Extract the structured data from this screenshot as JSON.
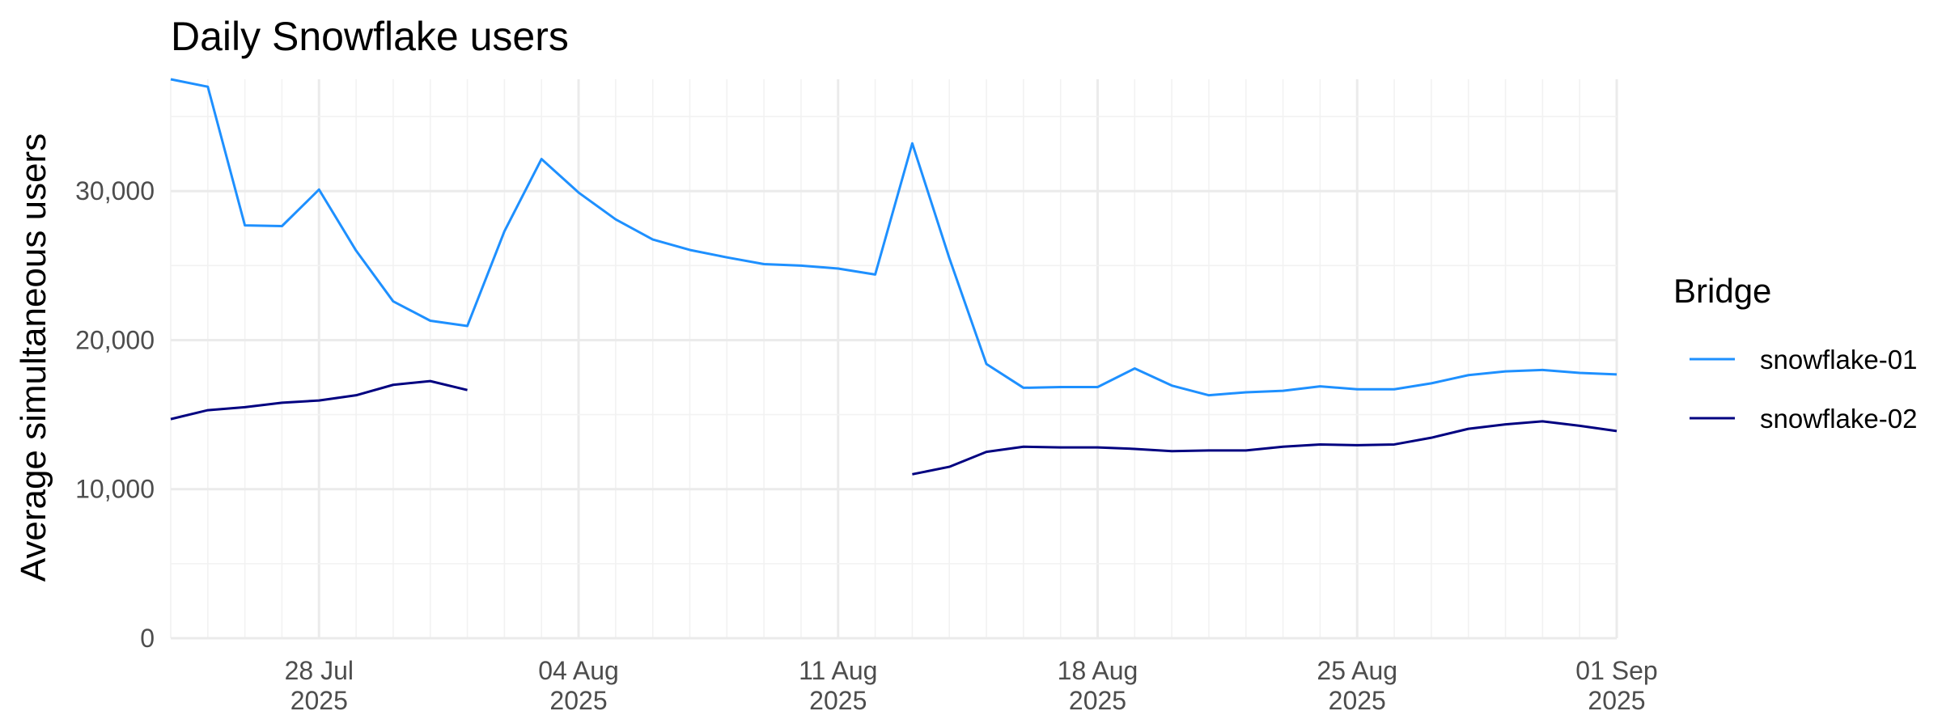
{
  "chart_data": {
    "type": "line",
    "title": "Daily Snowflake users",
    "xlabel": "",
    "ylabel": "Average simultaneous users",
    "xlim": [
      "2025-07-24",
      "2025-09-01"
    ],
    "ylim": [
      0,
      37500
    ],
    "y_ticks": [
      {
        "value": 0,
        "label": "0"
      },
      {
        "value": 10000,
        "label": "10,000"
      },
      {
        "value": 20000,
        "label": "20,000"
      },
      {
        "value": 30000,
        "label": "30,000"
      }
    ],
    "x_ticks": [
      {
        "date": "2025-07-28",
        "line1": "28 Jul",
        "line2": "2025"
      },
      {
        "date": "2025-08-04",
        "line1": "04 Aug",
        "line2": "2025"
      },
      {
        "date": "2025-08-11",
        "line1": "11 Aug",
        "line2": "2025"
      },
      {
        "date": "2025-08-18",
        "line1": "18 Aug",
        "line2": "2025"
      },
      {
        "date": "2025-08-25",
        "line1": "25 Aug",
        "line2": "2025"
      },
      {
        "date": "2025-09-01",
        "line1": "01 Sep",
        "line2": "2025"
      }
    ],
    "grid": true,
    "legend": {
      "title": "Bridge",
      "position": "right"
    },
    "series": [
      {
        "name": "snowflake-01",
        "color": "#1e90ff",
        "points": [
          {
            "x": "2025-07-24",
            "y": 37500
          },
          {
            "x": "2025-07-25",
            "y": 37000
          },
          {
            "x": "2025-07-26",
            "y": 27700
          },
          {
            "x": "2025-07-27",
            "y": 27650
          },
          {
            "x": "2025-07-28",
            "y": 30100
          },
          {
            "x": "2025-07-29",
            "y": 26000
          },
          {
            "x": "2025-07-30",
            "y": 22600
          },
          {
            "x": "2025-07-31",
            "y": 21300
          },
          {
            "x": "2025-08-01",
            "y": 20950
          },
          {
            "x": "2025-08-02",
            "y": 27300
          },
          {
            "x": "2025-08-03",
            "y": 32150
          },
          {
            "x": "2025-08-04",
            "y": 29900
          },
          {
            "x": "2025-08-05",
            "y": 28100
          },
          {
            "x": "2025-08-06",
            "y": 26750
          },
          {
            "x": "2025-08-07",
            "y": 26050
          },
          {
            "x": "2025-08-08",
            "y": 25550
          },
          {
            "x": "2025-08-09",
            "y": 25100
          },
          {
            "x": "2025-08-10",
            "y": 25000
          },
          {
            "x": "2025-08-11",
            "y": 24800
          },
          {
            "x": "2025-08-12",
            "y": 24400
          },
          {
            "x": "2025-08-13",
            "y": 33200
          },
          {
            "x": "2025-08-14",
            "y": 25500
          },
          {
            "x": "2025-08-15",
            "y": 18400
          },
          {
            "x": "2025-08-16",
            "y": 16800
          },
          {
            "x": "2025-08-17",
            "y": 16850
          },
          {
            "x": "2025-08-18",
            "y": 16850
          },
          {
            "x": "2025-08-19",
            "y": 18100
          },
          {
            "x": "2025-08-20",
            "y": 16950
          },
          {
            "x": "2025-08-21",
            "y": 16300
          },
          {
            "x": "2025-08-22",
            "y": 16500
          },
          {
            "x": "2025-08-23",
            "y": 16600
          },
          {
            "x": "2025-08-24",
            "y": 16900
          },
          {
            "x": "2025-08-25",
            "y": 16700
          },
          {
            "x": "2025-08-26",
            "y": 16700
          },
          {
            "x": "2025-08-27",
            "y": 17100
          },
          {
            "x": "2025-08-28",
            "y": 17650
          },
          {
            "x": "2025-08-29",
            "y": 17900
          },
          {
            "x": "2025-08-30",
            "y": 18000
          },
          {
            "x": "2025-08-31",
            "y": 17800
          },
          {
            "x": "2025-09-01",
            "y": 17700
          }
        ]
      },
      {
        "name": "snowflake-02",
        "color": "#000080",
        "points": [
          {
            "x": "2025-07-24",
            "y": 14700
          },
          {
            "x": "2025-07-25",
            "y": 15300
          },
          {
            "x": "2025-07-26",
            "y": 15500
          },
          {
            "x": "2025-07-27",
            "y": 15800
          },
          {
            "x": "2025-07-28",
            "y": 15950
          },
          {
            "x": "2025-07-29",
            "y": 16300
          },
          {
            "x": "2025-07-30",
            "y": 17000
          },
          {
            "x": "2025-07-31",
            "y": 17250
          },
          {
            "x": "2025-08-01",
            "y": 16650
          },
          {
            "x": "2025-08-13",
            "y": 11000
          },
          {
            "x": "2025-08-14",
            "y": 11500
          },
          {
            "x": "2025-08-15",
            "y": 12500
          },
          {
            "x": "2025-08-16",
            "y": 12850
          },
          {
            "x": "2025-08-17",
            "y": 12800
          },
          {
            "x": "2025-08-18",
            "y": 12800
          },
          {
            "x": "2025-08-19",
            "y": 12700
          },
          {
            "x": "2025-08-20",
            "y": 12550
          },
          {
            "x": "2025-08-21",
            "y": 12600
          },
          {
            "x": "2025-08-22",
            "y": 12600
          },
          {
            "x": "2025-08-23",
            "y": 12850
          },
          {
            "x": "2025-08-24",
            "y": 13000
          },
          {
            "x": "2025-08-25",
            "y": 12950
          },
          {
            "x": "2025-08-26",
            "y": 13000
          },
          {
            "x": "2025-08-27",
            "y": 13450
          },
          {
            "x": "2025-08-28",
            "y": 14050
          },
          {
            "x": "2025-08-29",
            "y": 14350
          },
          {
            "x": "2025-08-30",
            "y": 14550
          },
          {
            "x": "2025-08-31",
            "y": 14250
          },
          {
            "x": "2025-09-01",
            "y": 13900
          }
        ]
      }
    ]
  }
}
